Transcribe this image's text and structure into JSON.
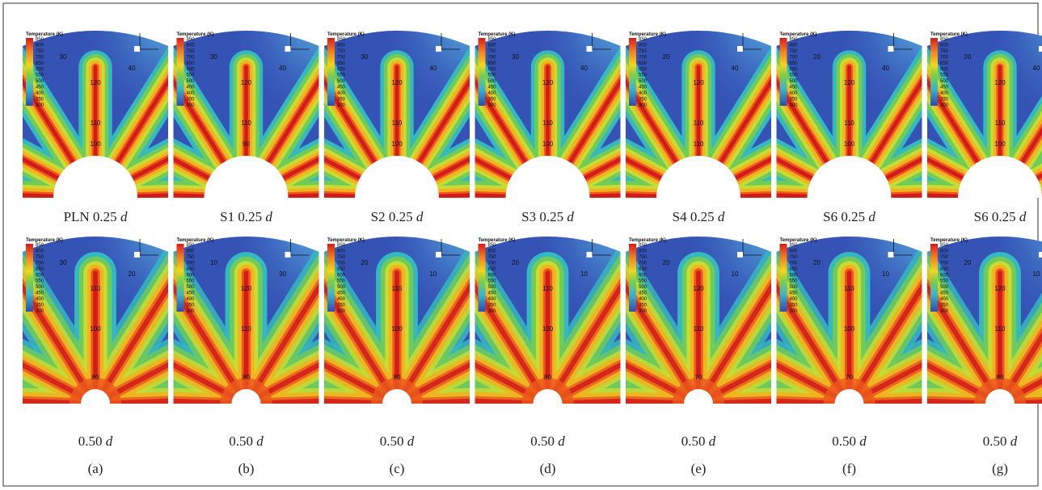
{
  "colorbar": {
    "title": "Temperature (K)",
    "ticks": [
      "850",
      "800",
      "750",
      "700",
      "650",
      "600",
      "550",
      "500",
      "450",
      "400",
      "350",
      "300"
    ]
  },
  "panels": [
    {
      "top": {
        "label": "PLN 0.25",
        "unit": "d",
        "contours": [
          "30",
          "40",
          "120",
          "110",
          "100"
        ]
      },
      "bottom": {
        "label": "0.50",
        "unit": "d",
        "contours": [
          "30",
          "20",
          "110",
          "100",
          "80"
        ]
      },
      "letter": "(a)"
    },
    {
      "top": {
        "label": "S1 0.25",
        "unit": "d",
        "contours": [
          "30",
          "40",
          "120",
          "110",
          "90"
        ]
      },
      "bottom": {
        "label": "0.50",
        "unit": "d",
        "contours": [
          "10",
          "30",
          "120",
          "110",
          "80"
        ]
      },
      "letter": "(b)"
    },
    {
      "top": {
        "label": "S2 0.25",
        "unit": "d",
        "contours": [
          "30",
          "40",
          "120",
          "110",
          "100"
        ]
      },
      "bottom": {
        "label": "0.50",
        "unit": "d",
        "contours": [
          "20",
          "10",
          "110",
          "100",
          "80"
        ]
      },
      "letter": "(c)"
    },
    {
      "top": {
        "label": "S3 0.25",
        "unit": "d",
        "contours": [
          "30",
          "40",
          "120",
          "110",
          "100"
        ]
      },
      "bottom": {
        "label": "0.50",
        "unit": "d",
        "contours": [
          "20",
          "10",
          "110",
          "100",
          "80"
        ]
      },
      "letter": "(d)"
    },
    {
      "top": {
        "label": "S4 0.25",
        "unit": "d",
        "contours": [
          "20",
          "40",
          "120",
          "110",
          "110"
        ]
      },
      "bottom": {
        "label": "0.50",
        "unit": "d",
        "contours": [
          "20",
          "10",
          "120",
          "110",
          "70"
        ]
      },
      "letter": "(e)"
    },
    {
      "top": {
        "label": "S6 0.25",
        "unit": "d",
        "contours": [
          "20",
          "40",
          "120",
          "110",
          "100"
        ]
      },
      "bottom": {
        "label": "0.50",
        "unit": "d",
        "contours": [
          "20",
          "10",
          "110",
          "100",
          "70"
        ]
      },
      "letter": "(f)"
    },
    {
      "top": {
        "label": "S6 0.25",
        "unit": "d",
        "contours": [
          "20",
          "40",
          "120",
          "110",
          "100"
        ]
      },
      "bottom": {
        "label": "0.50",
        "unit": "d",
        "contours": [
          "20",
          "10",
          "120",
          "110",
          "80"
        ]
      },
      "letter": "(g)"
    }
  ]
}
